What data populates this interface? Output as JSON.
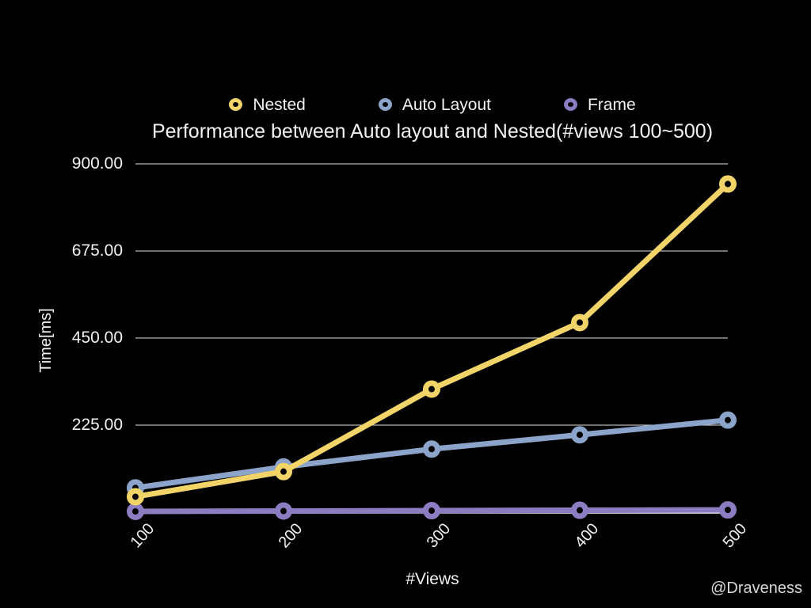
{
  "title": "Performance between Auto layout and Nested(#views 100~500)",
  "watermark": "@Draveness",
  "legend": {
    "items": [
      {
        "label": "Nested",
        "color": "#f3d469"
      },
      {
        "label": "Auto Layout",
        "color": "#8ca4c9"
      },
      {
        "label": "Frame",
        "color": "#8c7dc2"
      }
    ]
  },
  "chart_data": {
    "type": "line",
    "title": "Performance between Auto layout and Nested(#views 100~500)",
    "xlabel": "#Views",
    "ylabel": "Time[ms]",
    "x": [
      100,
      200,
      300,
      400,
      500
    ],
    "xtick_labels": [
      "100",
      "200",
      "300",
      "400",
      "500"
    ],
    "series": [
      {
        "name": "Nested",
        "color": "#f3d469",
        "values": [
          40,
          105,
          318,
          490,
          848
        ]
      },
      {
        "name": "Auto Layout",
        "color": "#8ca4c9",
        "values": [
          63,
          117,
          163,
          200,
          238
        ]
      },
      {
        "name": "Frame",
        "color": "#8c7dc2",
        "values": [
          2,
          3,
          4,
          5,
          6
        ]
      }
    ],
    "yticks": [
      225,
      450,
      675,
      900
    ],
    "ytick_labels": [
      "225.00",
      "450.00",
      "675.00",
      "900.00"
    ],
    "ylim": [
      0,
      900
    ],
    "grid": true,
    "legend_position": "top",
    "background": "#000000",
    "grid_color": "#e2e2e2",
    "axis_line_color": "#ffffff",
    "text_color": "#f2f2f2"
  }
}
